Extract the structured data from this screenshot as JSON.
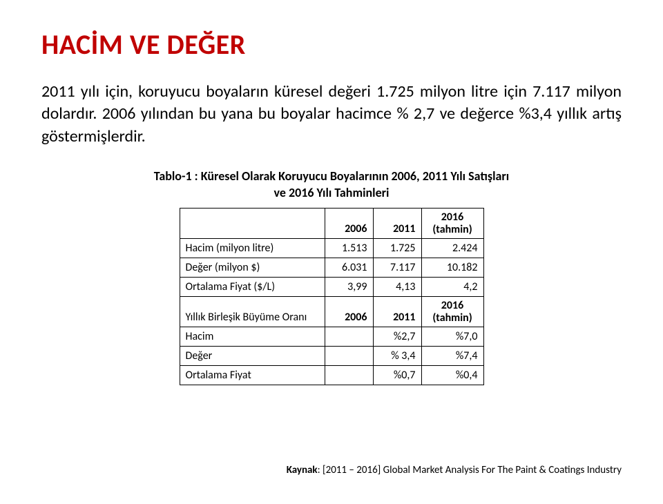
{
  "title": "HACİM VE DEĞER",
  "paragraph": "2011 yılı için, koruyucu boyaların küresel değeri 1.725 milyon litre için 7.117 milyon dolardır. 2006 yılından bu yana bu boyalar hacimce % 2,7 ve değerce %3,4 yıllık artış göstermişlerdir.",
  "table_caption": "Tablo-1 : Küresel Olarak Koruyucu Boyalarının 2006, 2011 Yılı Satışları ve 2016 Yılı Tahminleri",
  "table": {
    "header": {
      "c1": "",
      "c2": "2006",
      "c3": "2011",
      "c4a": "2016",
      "c4b": "(tahmin)"
    },
    "rows_top": [
      {
        "label": "Hacim (milyon litre)",
        "v2006": "1.513",
        "v2011": "1.725",
        "v2016": "2.424"
      },
      {
        "label": "Değer (milyon $)",
        "v2006": "6.031",
        "v2011": "7.117",
        "v2016": "10.182"
      },
      {
        "label": "Ortalama Fiyat ($/L)",
        "v2006": "3,99",
        "v2011": "4,13",
        "v2016": "4,2"
      }
    ],
    "header2": {
      "c1": "Yıllık Birleşik Büyüme Oranı",
      "c2": "2006",
      "c3": "2011",
      "c4a": "2016",
      "c4b": "(tahmin)"
    },
    "rows_bot": [
      {
        "label": "Hacim",
        "v2006": "",
        "v2011": "%2,7",
        "v2016": "%7,0"
      },
      {
        "label": "Değer",
        "v2006": "",
        "v2011": "% 3,4",
        "v2016": "%7,4"
      },
      {
        "label": "Ortalama Fiyat",
        "v2006": "",
        "v2011": "%0,7",
        "v2016": "%0,4"
      }
    ]
  },
  "source": {
    "label": "Kaynak",
    "text": ": [2011 – 2016] Global Market Analysis For The Paint & Coatings Industry"
  },
  "colors": {
    "title": "#c00000",
    "text": "#000000",
    "border": "#000000",
    "background": "#ffffff"
  }
}
